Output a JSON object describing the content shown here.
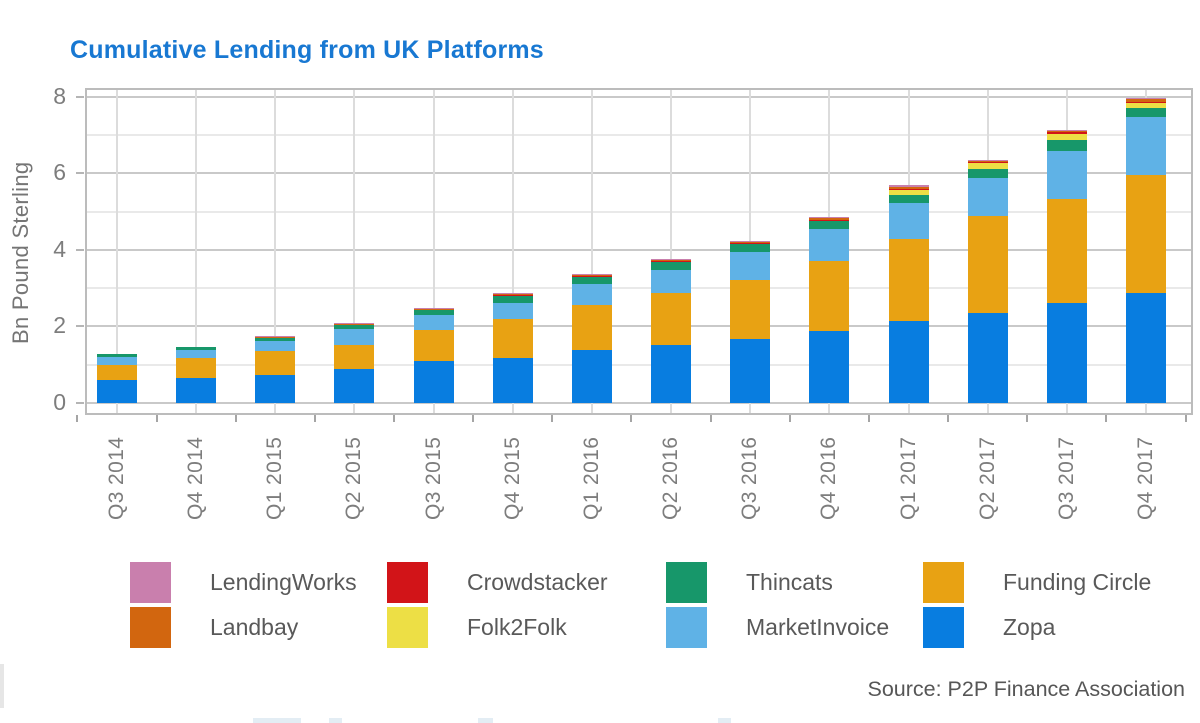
{
  "title": {
    "text": "Cumulative Lending from UK Platforms",
    "color": "#1878D2"
  },
  "source_note": "Source: P2P Finance Association",
  "axis": {
    "frame_color": "#bcbcbc",
    "grid_major_color": "#c9c9c9",
    "grid_minor_color": "#e9e9e9",
    "grid_vertical_color": "#dcdcdc",
    "tick_label_color": "#7d7d7d"
  },
  "chart_data": {
    "type": "bar",
    "stacked": true,
    "title": "Cumulative Lending from UK Platforms",
    "ylabel": "Bn Pound Sterling",
    "xlabel": "",
    "ylim": [
      0,
      8.3
    ],
    "y_ticks": [
      0,
      2,
      4,
      6,
      8
    ],
    "y_minor_gridlines": [
      1,
      3,
      5,
      7
    ],
    "grid": true,
    "legend_position": "bottom",
    "categories": [
      "Q3 2014",
      "Q4 2014",
      "Q1 2015",
      "Q2 2015",
      "Q3 2015",
      "Q4 2015",
      "Q1 2016",
      "Q2 2016",
      "Q3 2016",
      "Q4 2016",
      "Q1 2017",
      "Q2 2017",
      "Q3 2017",
      "Q4 2017"
    ],
    "series": [
      {
        "name": "Zopa",
        "color": "#087DE0",
        "values": [
          0.6,
          0.66,
          0.74,
          0.88,
          1.09,
          1.18,
          1.38,
          1.51,
          1.67,
          1.87,
          2.13,
          2.35,
          2.61,
          2.87
        ]
      },
      {
        "name": "Funding Circle",
        "color": "#E8A213",
        "values": [
          0.4,
          0.52,
          0.62,
          0.64,
          0.81,
          1.02,
          1.17,
          1.36,
          1.55,
          1.83,
          2.15,
          2.52,
          2.72,
          3.08
        ]
      },
      {
        "name": "MarketInvoice",
        "color": "#5FB2E6",
        "values": [
          0.2,
          0.21,
          0.26,
          0.42,
          0.4,
          0.42,
          0.55,
          0.61,
          0.72,
          0.84,
          0.93,
          1.0,
          1.25,
          1.52
        ]
      },
      {
        "name": "Thincats",
        "color": "#17976A",
        "values": [
          0.07,
          0.08,
          0.09,
          0.11,
          0.14,
          0.18,
          0.19,
          0.2,
          0.2,
          0.2,
          0.22,
          0.24,
          0.28,
          0.24
        ]
      },
      {
        "name": "Folk2Folk",
        "color": "#EDDF45",
        "values": [
          0,
          0,
          0,
          0,
          0,
          0,
          0,
          0,
          0,
          0,
          0.13,
          0.15,
          0.16,
          0.13
        ]
      },
      {
        "name": "Crowdstacker",
        "color": "#D21418",
        "values": [
          0,
          0,
          0,
          0,
          0,
          0.02,
          0.03,
          0.03,
          0.03,
          0.04,
          0.04,
          0.03,
          0.05,
          0.02
        ]
      },
      {
        "name": "Landbay",
        "color": "#D2660F",
        "values": [
          0,
          0,
          0.02,
          0.02,
          0.02,
          0.03,
          0.03,
          0.03,
          0.03,
          0.04,
          0.04,
          0.03,
          0.03,
          0.09
        ]
      },
      {
        "name": "LendingWorks",
        "color": "#C97FAD",
        "values": [
          0,
          0,
          0.02,
          0.02,
          0.02,
          0.03,
          0.03,
          0.03,
          0.03,
          0.04,
          0.04,
          0.03,
          0.02,
          0.02
        ]
      }
    ],
    "legend_rows": [
      [
        "LendingWorks",
        "Crowdstacker",
        "Thincats",
        "Funding Circle"
      ],
      [
        "Landbay",
        "Folk2Folk",
        "MarketInvoice",
        "Zopa"
      ]
    ]
  },
  "bottom_artifacts": {
    "strip_color": "#e3edf4",
    "left_smudge_color": "#e6e6e6"
  }
}
